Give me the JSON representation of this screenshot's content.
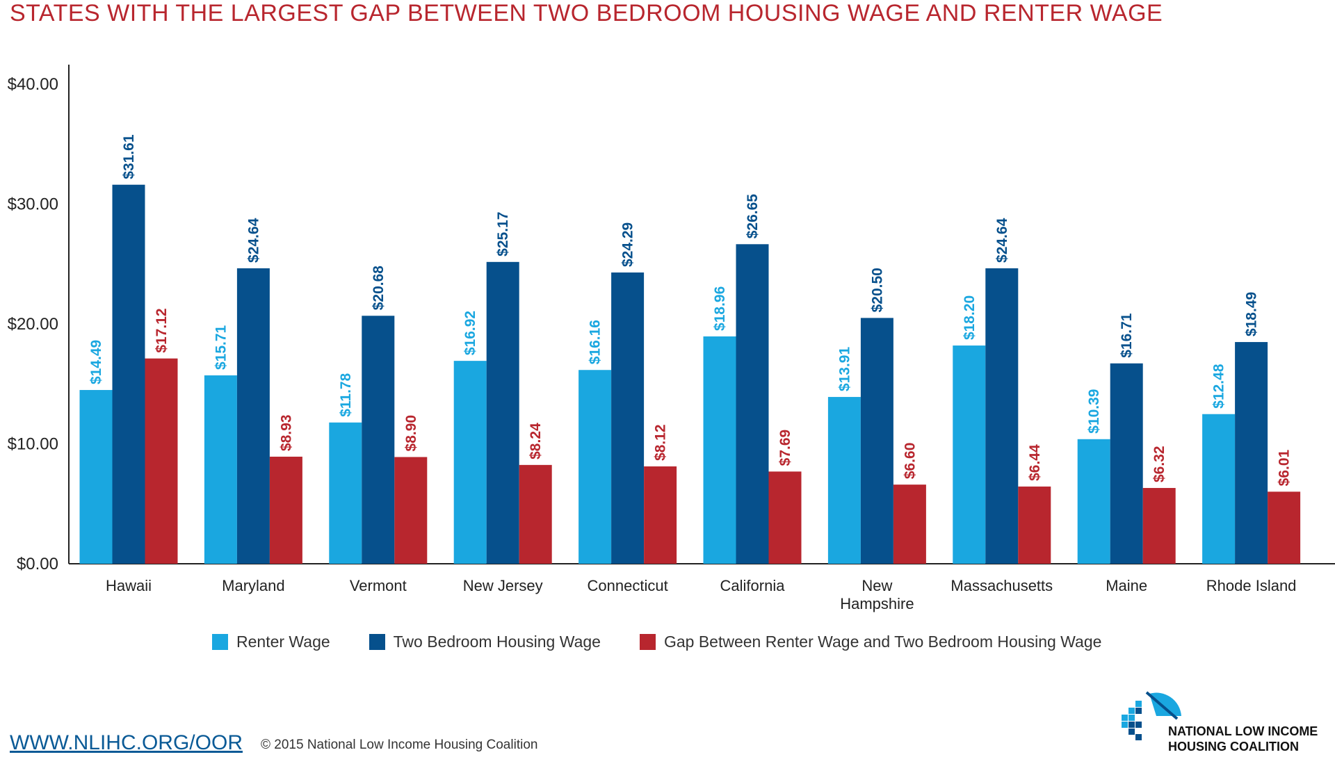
{
  "title": "STATES WITH THE LARGEST GAP BETWEEN TWO BEDROOM HOUSING WAGE AND RENTER WAGE",
  "colors": {
    "renter": "#1aa7e0",
    "housing": "#06508c",
    "gap": "#b8262e",
    "title": "#b8262e",
    "link": "#0a5a96"
  },
  "legend": {
    "renter": "Renter Wage",
    "housing": "Two Bedroom Housing Wage",
    "gap": "Gap Between Renter Wage and Two Bedroom Housing Wage"
  },
  "footer": {
    "link": "WWW.NLIHC.ORG/OOR",
    "copyright": "© 2015 National Low Income Housing Coalition"
  },
  "logo": {
    "line1": "NATIONAL LOW INCOME",
    "line2": "HOUSING COALITION"
  },
  "chart_data": {
    "type": "bar",
    "categories": [
      "Hawaii",
      "Maryland",
      "Vermont",
      "New Jersey",
      "Connecticut",
      "California",
      "New Hampshire",
      "Massachusetts",
      "Maine",
      "Rhode Island"
    ],
    "category_lines": [
      [
        "Hawaii"
      ],
      [
        "Maryland"
      ],
      [
        "Vermont"
      ],
      [
        "New Jersey"
      ],
      [
        "Connecticut"
      ],
      [
        "California"
      ],
      [
        "New",
        "Hampshire"
      ],
      [
        "Massachusetts"
      ],
      [
        "Maine"
      ],
      [
        "Rhode Island"
      ]
    ],
    "series": [
      {
        "name": "Renter Wage",
        "values": [
          14.49,
          15.71,
          11.78,
          16.92,
          16.16,
          18.96,
          13.91,
          18.2,
          10.39,
          12.48
        ]
      },
      {
        "name": "Two Bedroom Housing Wage",
        "values": [
          31.61,
          24.64,
          20.68,
          25.17,
          24.29,
          26.65,
          20.5,
          24.64,
          16.71,
          18.49
        ]
      },
      {
        "name": "Gap Between Renter Wage and Two Bedroom Housing Wage",
        "values": [
          17.12,
          8.93,
          8.9,
          8.24,
          8.12,
          7.69,
          6.6,
          6.44,
          6.32,
          6.01
        ]
      }
    ],
    "value_labels": [
      [
        "$14.49",
        "$15.71",
        "$11.78",
        "$16.92",
        "$16.16",
        "$18.96",
        "$13.91",
        "$18.20",
        "$10.39",
        "$12.48"
      ],
      [
        "$31.61",
        "$24.64",
        "$20.68",
        "$25.17",
        "$24.29",
        "$26.65",
        "$20.50",
        "$24.64",
        "$16.71",
        "$18.49"
      ],
      [
        "$17.12",
        "$8.93",
        "$8.90",
        "$8.24",
        "$8.12",
        "$7.69",
        "$6.60",
        "$6.44",
        "$6.32",
        "$6.01"
      ]
    ],
    "yticks": [
      0,
      10,
      20,
      30,
      40
    ],
    "ytick_labels": [
      "$0.00",
      "$10.00",
      "$20.00",
      "$30.00",
      "$40.00"
    ],
    "ylim": [
      0,
      40
    ],
    "grid": false,
    "legend_position": "bottom"
  }
}
